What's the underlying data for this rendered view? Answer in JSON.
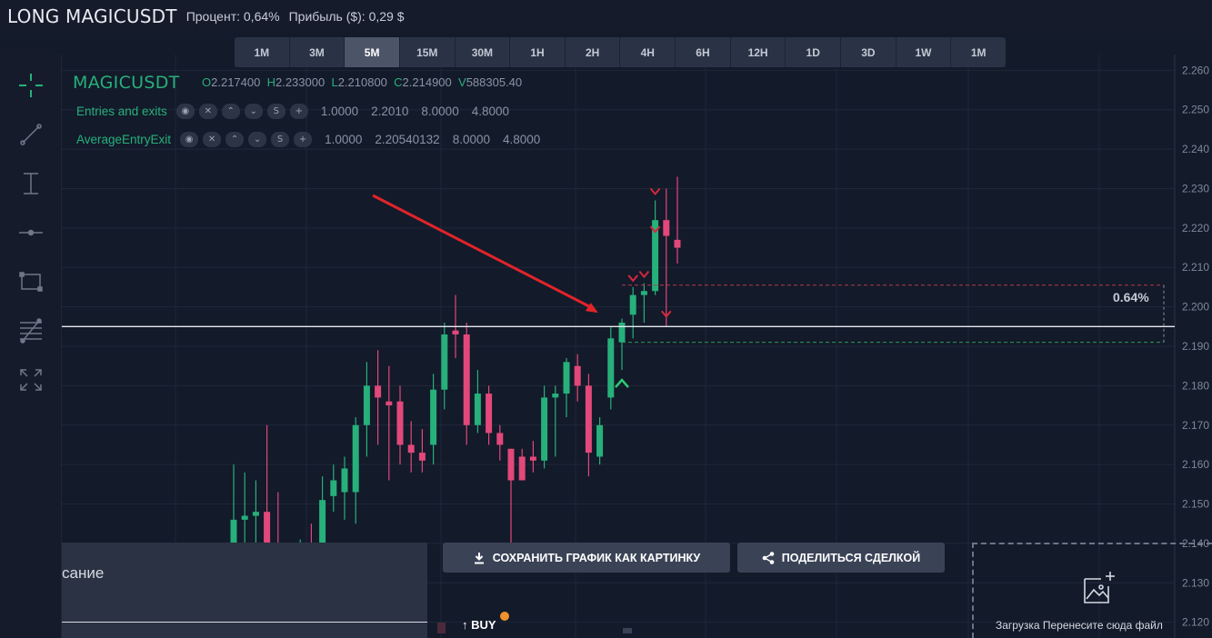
{
  "header": {
    "title": "LONG MAGICUSDT",
    "percent": "Процент: 0,64%",
    "profit": "Прибыль ($): 0,29 $"
  },
  "timeframes": {
    "items": [
      "1M",
      "3M",
      "5M",
      "15M",
      "30M",
      "1H",
      "2H",
      "4H",
      "6H",
      "12H",
      "1D",
      "3D",
      "1W",
      "1M"
    ],
    "active": "5M"
  },
  "toolbar": {
    "tools": [
      "crosshair-icon",
      "trend-line-icon",
      "vertical-line-icon",
      "horizontal-ray-icon",
      "rectangle-icon",
      "fib-levels-icon",
      "fullscreen-icon"
    ]
  },
  "legend": {
    "symbol": "MAGICUSDT",
    "o_label": "O",
    "o": "2.217400",
    "h_label": "H",
    "h": "2.233000",
    "l_label": "L",
    "l": "2.210800",
    "c_label": "C",
    "c": "2.214900",
    "v_label": "V",
    "v": "588305.40",
    "indicators": [
      {
        "name": "Entries and exits",
        "values": [
          "1.0000",
          "2.2010",
          "8.0000",
          "4.8000"
        ]
      },
      {
        "name": "AverageEntryExit",
        "values": [
          "1.0000",
          "2.20540132",
          "8.0000",
          "4.8000"
        ]
      }
    ],
    "indicator_buttons": [
      "◉",
      "✕",
      "⌃",
      "⌄",
      "S",
      "+"
    ]
  },
  "price_axis": {
    "labels": [
      "2.260",
      "2.250",
      "2.240",
      "2.230",
      "2.220",
      "2.210",
      "2.200",
      "2.190",
      "2.180",
      "2.170",
      "2.160",
      "2.150",
      "2.140",
      "2.130",
      "2.120"
    ]
  },
  "percent_label": "0.64%",
  "buttons": {
    "save_image": "СОХРАНИТЬ ГРАФИК КАК КАРТИНКУ",
    "share_trade": "ПОДЕЛИТЬСЯ СДЕЛКОЙ"
  },
  "description_panel": {
    "text": "сание"
  },
  "buy_marker": "BUY",
  "upload": {
    "text": "Загрузка Перенесите сюда файл"
  },
  "colors": {
    "up": "#27b07a",
    "down": "#e2487a",
    "background": "#131a2a",
    "arrow": "#e0242a"
  },
  "chart_data": {
    "type": "candlestick",
    "symbol": "MAGICUSDT",
    "ylim": [
      2.116,
      2.264
    ],
    "position_levels": {
      "entry": 2.195,
      "stop": 2.191,
      "take": 2.2055
    },
    "candles": [
      {
        "o": 2.113,
        "h": 2.16,
        "l": 2.108,
        "c": 2.146
      },
      {
        "o": 2.146,
        "h": 2.158,
        "l": 2.14,
        "c": 2.147
      },
      {
        "o": 2.147,
        "h": 2.156,
        "l": 2.131,
        "c": 2.148
      },
      {
        "o": 2.148,
        "h": 2.17,
        "l": 2.133,
        "c": 2.137
      },
      {
        "o": 2.138,
        "h": 2.153,
        "l": 2.129,
        "c": 2.129
      },
      {
        "o": 2.13,
        "h": 2.14,
        "l": 2.12,
        "c": 2.123
      },
      {
        "o": 2.123,
        "h": 2.141,
        "l": 2.12,
        "c": 2.14
      },
      {
        "o": 2.14,
        "h": 2.145,
        "l": 2.123,
        "c": 2.127
      },
      {
        "o": 2.14,
        "h": 2.157,
        "l": 2.135,
        "c": 2.151
      },
      {
        "o": 2.152,
        "h": 2.16,
        "l": 2.148,
        "c": 2.156
      },
      {
        "o": 2.153,
        "h": 2.162,
        "l": 2.146,
        "c": 2.159
      },
      {
        "o": 2.153,
        "h": 2.172,
        "l": 2.145,
        "c": 2.17
      },
      {
        "o": 2.17,
        "h": 2.186,
        "l": 2.162,
        "c": 2.18
      },
      {
        "o": 2.18,
        "h": 2.189,
        "l": 2.165,
        "c": 2.177
      },
      {
        "o": 2.176,
        "h": 2.185,
        "l": 2.156,
        "c": 2.175
      },
      {
        "o": 2.176,
        "h": 2.18,
        "l": 2.16,
        "c": 2.165
      },
      {
        "o": 2.165,
        "h": 2.171,
        "l": 2.158,
        "c": 2.163
      },
      {
        "o": 2.163,
        "h": 2.169,
        "l": 2.158,
        "c": 2.161
      },
      {
        "o": 2.165,
        "h": 2.183,
        "l": 2.16,
        "c": 2.179
      },
      {
        "o": 2.179,
        "h": 2.196,
        "l": 2.174,
        "c": 2.193
      },
      {
        "o": 2.194,
        "h": 2.203,
        "l": 2.187,
        "c": 2.193
      },
      {
        "o": 2.193,
        "h": 2.196,
        "l": 2.165,
        "c": 2.17
      },
      {
        "o": 2.17,
        "h": 2.184,
        "l": 2.168,
        "c": 2.178
      },
      {
        "o": 2.178,
        "h": 2.18,
        "l": 2.165,
        "c": 2.168
      },
      {
        "o": 2.168,
        "h": 2.17,
        "l": 2.161,
        "c": 2.165
      },
      {
        "o": 2.164,
        "h": 2.164,
        "l": 2.14,
        "c": 2.156
      },
      {
        "o": 2.162,
        "h": 2.164,
        "l": 2.156,
        "c": 2.156
      },
      {
        "o": 2.162,
        "h": 2.166,
        "l": 2.158,
        "c": 2.161
      },
      {
        "o": 2.161,
        "h": 2.18,
        "l": 2.159,
        "c": 2.177
      },
      {
        "o": 2.177,
        "h": 2.18,
        "l": 2.162,
        "c": 2.178
      },
      {
        "o": 2.178,
        "h": 2.187,
        "l": 2.172,
        "c": 2.186
      },
      {
        "o": 2.185,
        "h": 2.188,
        "l": 2.176,
        "c": 2.18
      },
      {
        "o": 2.18,
        "h": 2.183,
        "l": 2.157,
        "c": 2.163
      },
      {
        "o": 2.162,
        "h": 2.172,
        "l": 2.16,
        "c": 2.17
      },
      {
        "o": 2.177,
        "h": 2.195,
        "l": 2.174,
        "c": 2.192
      },
      {
        "o": 2.191,
        "h": 2.197,
        "l": 2.184,
        "c": 2.196
      },
      {
        "o": 2.198,
        "h": 2.205,
        "l": 2.192,
        "c": 2.203
      },
      {
        "o": 2.203,
        "h": 2.206,
        "l": 2.196,
        "c": 2.204
      },
      {
        "o": 2.204,
        "h": 2.227,
        "l": 2.203,
        "c": 2.222
      },
      {
        "o": 2.222,
        "h": 2.23,
        "l": 2.195,
        "c": 2.218
      },
      {
        "o": 2.217,
        "h": 2.233,
        "l": 2.211,
        "c": 2.215
      }
    ],
    "trade_markers": [
      {
        "type": "buy",
        "candle": 35
      },
      {
        "type": "sell",
        "candle": 36
      },
      {
        "type": "sell",
        "candle": 37
      },
      {
        "type": "sell",
        "candle": 38
      },
      {
        "type": "sell",
        "candle": 38
      },
      {
        "type": "sell",
        "candle": 39
      }
    ]
  }
}
